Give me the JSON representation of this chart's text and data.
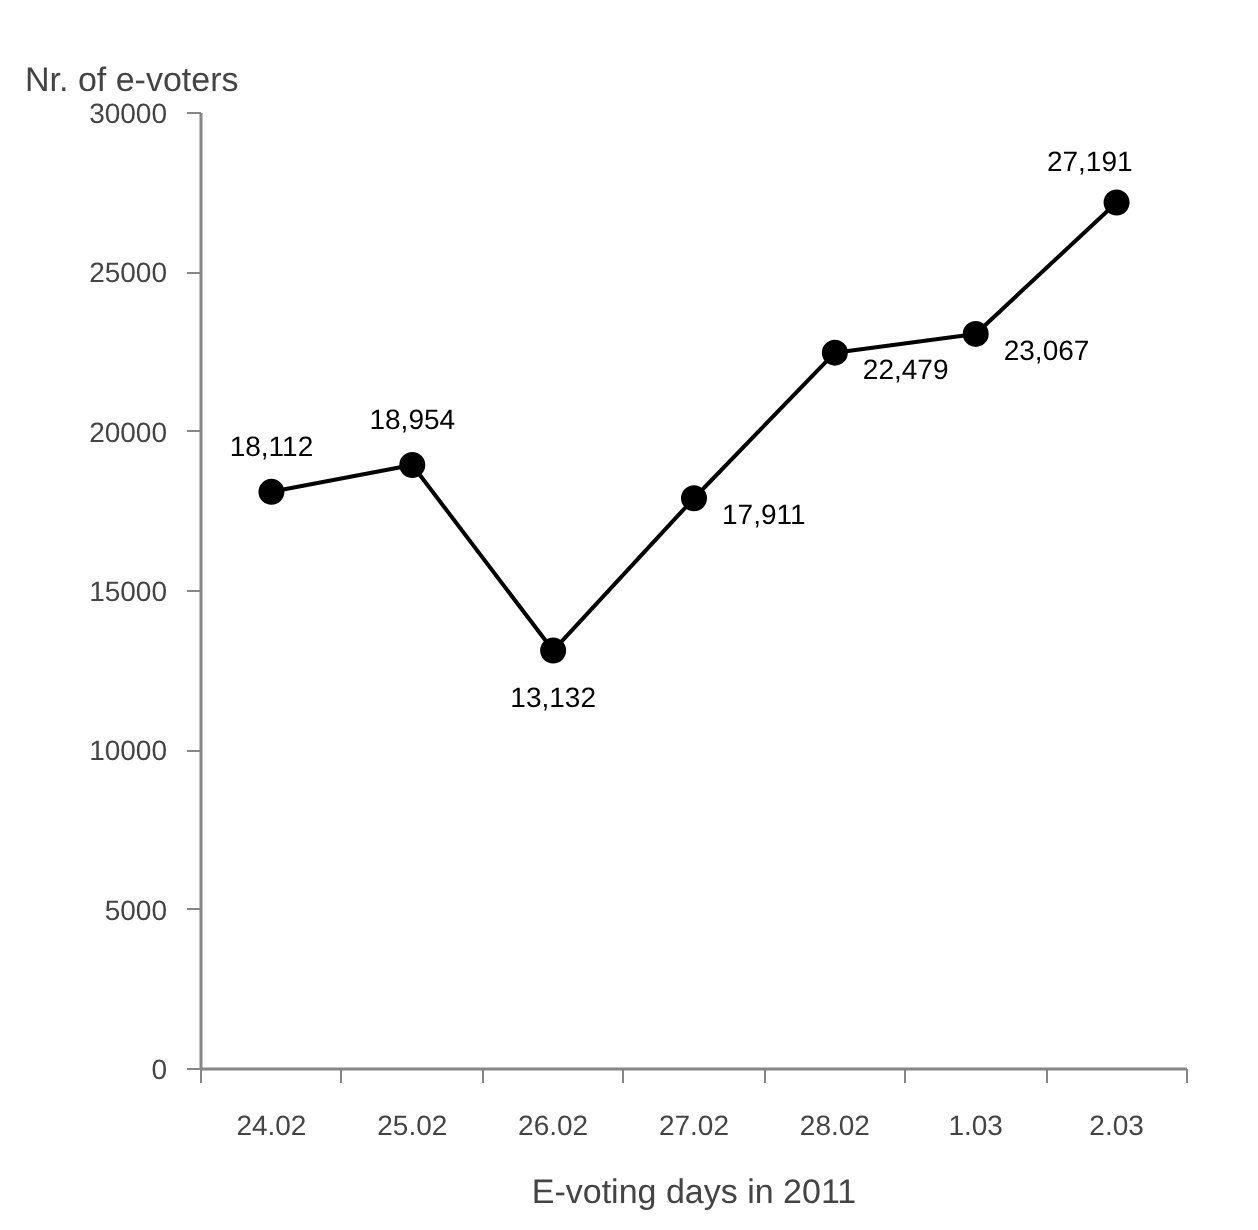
{
  "chart_data": {
    "type": "line",
    "xlabel": "E-voting days in 2011",
    "ylabel": "Nr. of e-voters",
    "categories": [
      "24.02",
      "25.02",
      "26.02",
      "27.02",
      "28.02",
      "1.03",
      "2.03"
    ],
    "values": [
      18112,
      18954,
      13132,
      17911,
      22479,
      23067,
      27191
    ],
    "value_labels": [
      "18,112",
      "18,954",
      "13,132",
      "17,911",
      "22,479",
      "23,067",
      "27,191"
    ],
    "color": "#000000",
    "marker": "circle",
    "line_style": "solid",
    "grid": false,
    "ylim": [
      0,
      30000
    ],
    "yticks": [
      0,
      5000,
      10000,
      15000,
      20000,
      25000,
      30000
    ]
  }
}
